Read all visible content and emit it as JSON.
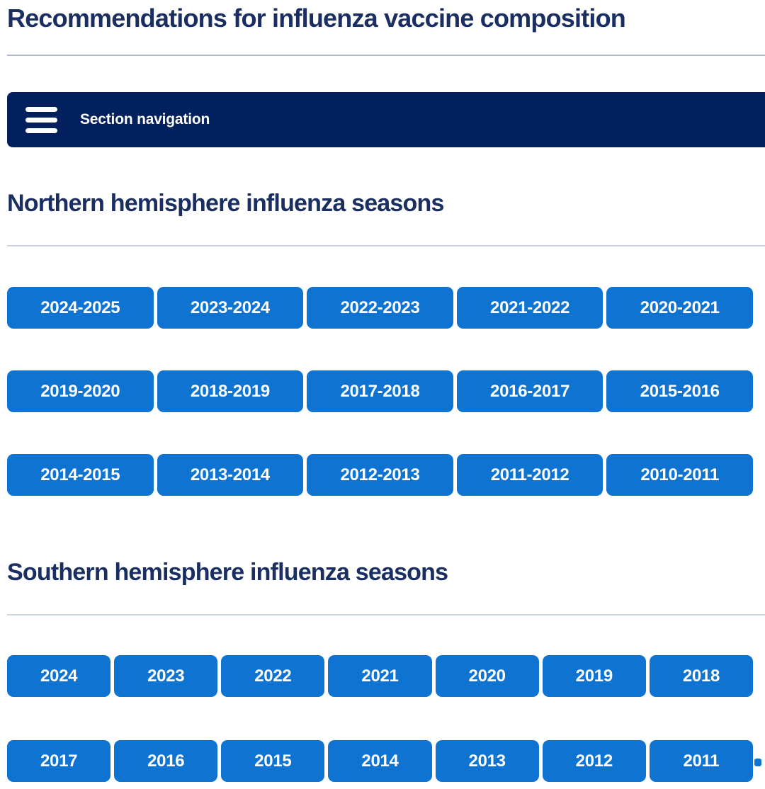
{
  "page": {
    "title": "Recommendations for influenza vaccine composition"
  },
  "section_nav": {
    "label": "Section navigation",
    "menu_icon": "hamburger-icon"
  },
  "northern": {
    "heading": "Northern hemisphere influenza seasons",
    "rows": [
      [
        "2024-2025",
        "2023-2024",
        "2022-2023",
        "2021-2022",
        "2020-2021"
      ],
      [
        "2019-2020",
        "2018-2019",
        "2017-2018",
        "2016-2017",
        "2015-2016"
      ],
      [
        "2014-2015",
        "2013-2014",
        "2012-2013",
        "2011-2012",
        "2010-2011"
      ]
    ]
  },
  "southern": {
    "heading": "Southern hemisphere influenza seasons",
    "rows": [
      [
        "2024",
        "2023",
        "2022",
        "2021",
        "2020",
        "2019",
        "2018"
      ],
      [
        "2017",
        "2016",
        "2015",
        "2014",
        "2013",
        "2012",
        "2011"
      ]
    ]
  },
  "colors": {
    "button_blue": "#0f74d1",
    "navbar_navy": "#02205e",
    "heading_navy": "#1b2e62",
    "divider_dark": "#b2bccf",
    "divider_light": "#ccd4e1"
  }
}
